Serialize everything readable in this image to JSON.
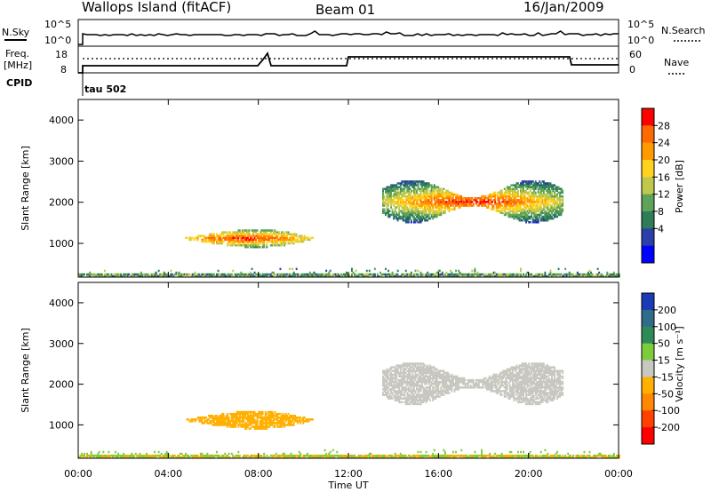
{
  "header": {
    "station": "Wallops Island (fitACF)",
    "beam": "Beam 01",
    "date": "16/Jan/2009"
  },
  "noise_panel": {
    "left_label": "N.Sky",
    "right_label": "N.Search",
    "yticks": [
      "10^5",
      "10^0"
    ]
  },
  "freq_panel": {
    "left_label_1": "Freq.",
    "left_label_2": "[MHz]",
    "left_yticks": [
      "18",
      "8"
    ],
    "right_label": "Nave",
    "right_yticks": [
      "60",
      "0"
    ],
    "cpid_label": "CPID",
    "cpid_value": "tau 502"
  },
  "power_colorbar": {
    "label": "Power [dB]",
    "ticks": [
      "28",
      "24",
      "20",
      "16",
      "12",
      "8",
      "4"
    ],
    "colors": [
      "#ff0000",
      "#ff6a00",
      "#ff9a00",
      "#ffd21e",
      "#bfc84a",
      "#5ea35a",
      "#2e7d58",
      "#2a3fa8",
      "#0000ff"
    ]
  },
  "velocity_colorbar": {
    "label": "Velocity [m s⁻¹]",
    "ticks": [
      "200",
      "100",
      "50",
      "15",
      "-15",
      "-50",
      "-100",
      "-200"
    ],
    "colors": [
      "#1b3ab5",
      "#2f6c8a",
      "#2e8b57",
      "#7ccd3c",
      "#c8c8c0",
      "#ffb000",
      "#ff8800",
      "#ff4000",
      "#ff0000"
    ]
  },
  "chart_data": [
    {
      "type": "heatmap",
      "title": "Power",
      "ylabel": "Slant Range [km]",
      "xlabel": "",
      "ylim": [
        180,
        4500
      ],
      "yticks": [
        1000,
        2000,
        3000,
        4000
      ],
      "xticks": [
        "00:00",
        "04:00",
        "08:00",
        "12:00",
        "16:00",
        "20:00",
        "00:00"
      ],
      "regions": [
        {
          "t_start": 4.5,
          "t_end": 10.5,
          "range_low": 800,
          "range_high": 1400,
          "peak_db": 26
        },
        {
          "t_start": 13.5,
          "t_end": 21.5,
          "range_low": 1450,
          "range_high": 2550,
          "peak_db": 24
        },
        {
          "t_start": 0.0,
          "t_end": 24.0,
          "range_low": 180,
          "range_high": 400,
          "peak_db": 10
        }
      ]
    },
    {
      "type": "heatmap",
      "title": "Velocity",
      "ylabel": "Slant Range [km]",
      "xlabel": "Time UT",
      "ylim": [
        180,
        4500
      ],
      "yticks": [
        1000,
        2000,
        3000,
        4000
      ],
      "xticks": [
        "00:00",
        "04:00",
        "08:00",
        "12:00",
        "16:00",
        "20:00",
        "00:00"
      ],
      "regions": [
        {
          "t_start": 4.5,
          "t_end": 10.5,
          "range_low": 800,
          "range_high": 1400,
          "velocity_class": "-15 to -50"
        },
        {
          "t_start": 13.5,
          "t_end": 21.5,
          "range_low": 1450,
          "range_high": 2550,
          "velocity_class": "-15 to 15"
        },
        {
          "t_start": 0.0,
          "t_end": 24.0,
          "range_low": 180,
          "range_high": 400,
          "velocity_class": "15 to 50"
        }
      ]
    }
  ]
}
